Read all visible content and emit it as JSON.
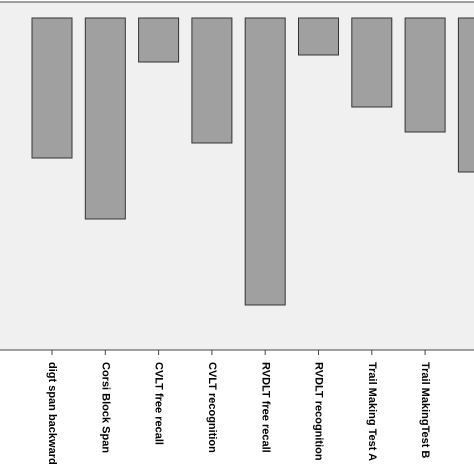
{
  "chart_data": {
    "type": "bar",
    "categories": [
      "digt span backward",
      "Corsi Block Span",
      "CVLT free recall",
      "CVLT recognition",
      "RVDLT free recall",
      "RVDLT recognition",
      "Trail Making Test A",
      "Trail MakingTest B",
      null
    ],
    "values": [
      -140,
      -201,
      -44,
      -125,
      -287,
      -37,
      -89,
      -114,
      -154
    ],
    "color": "#a0a0a0",
    "ylim": [
      -332,
      0
    ]
  }
}
